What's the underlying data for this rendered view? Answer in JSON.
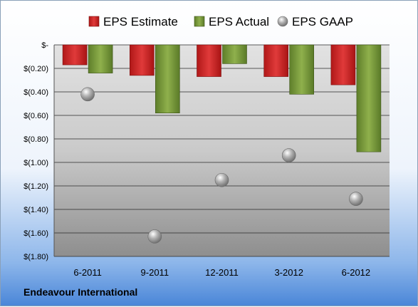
{
  "chart_data": {
    "type": "bar",
    "categories": [
      "6-2011",
      "9-2011",
      "12-2011",
      "3-2012",
      "6-2012"
    ],
    "series": [
      {
        "name": "EPS Estimate",
        "kind": "bar",
        "values": [
          -0.17,
          -0.26,
          -0.27,
          -0.27,
          -0.34
        ],
        "color": "#cc2222"
      },
      {
        "name": "EPS Actual",
        "kind": "bar",
        "values": [
          -0.24,
          -0.58,
          -0.16,
          -0.42,
          -0.91
        ],
        "color": "#7a9a3a"
      },
      {
        "name": "EPS GAAP",
        "kind": "scatter",
        "values": [
          -0.42,
          -1.63,
          -1.15,
          -0.94,
          -1.31
        ],
        "color": "#9a9a9a"
      }
    ],
    "y_ticks": [
      "$-",
      "$(0.20)",
      "$(0.40)",
      "$(0.60)",
      "$(0.80)",
      "$(1.00)",
      "$(1.20)",
      "$(1.40)",
      "$(1.60)",
      "$(1.80)"
    ],
    "ylim": [
      -1.8,
      0
    ],
    "grid": true,
    "legend_position": "top"
  },
  "footer": {
    "company": "Endeavour International"
  }
}
